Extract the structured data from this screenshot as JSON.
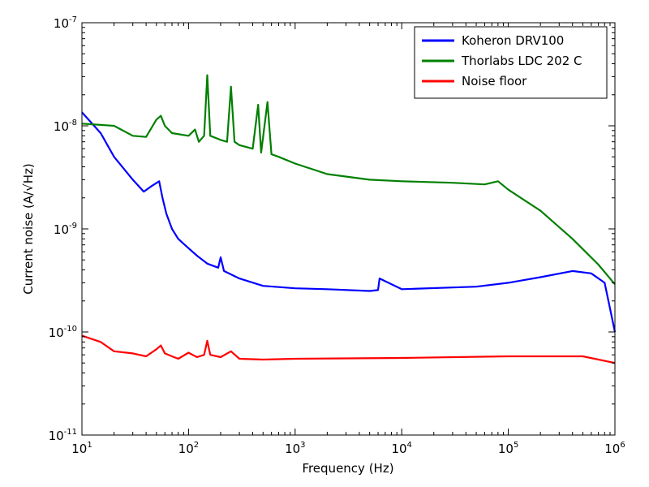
{
  "chart_data": {
    "type": "line",
    "title": "",
    "xlabel": "Frequency (Hz)",
    "ylabel": "Current noise (A/√Hz)",
    "xscale": "log",
    "yscale": "log",
    "xlim": [
      10,
      1000000
    ],
    "ylim": [
      1e-11,
      1e-07
    ],
    "grid": false,
    "legend_position": "top-right",
    "x_ticks": [
      {
        "base": "10",
        "exp": "1",
        "value": 10
      },
      {
        "base": "10",
        "exp": "2",
        "value": 100
      },
      {
        "base": "10",
        "exp": "3",
        "value": 1000
      },
      {
        "base": "10",
        "exp": "4",
        "value": 10000
      },
      {
        "base": "10",
        "exp": "5",
        "value": 100000
      },
      {
        "base": "10",
        "exp": "6",
        "value": 1000000
      }
    ],
    "y_ticks": [
      {
        "base": "10",
        "exp": "-11",
        "value": 1e-11
      },
      {
        "base": "10",
        "exp": "-10",
        "value": 1e-10
      },
      {
        "base": "10",
        "exp": "-9",
        "value": 1e-09
      },
      {
        "base": "10",
        "exp": "-8",
        "value": 1e-08
      },
      {
        "base": "10",
        "exp": "-7",
        "value": 1e-07
      }
    ],
    "series": [
      {
        "name": "Koheron DRV100",
        "color": "#0000ff",
        "x": [
          10,
          15,
          20,
          30,
          38,
          45,
          53,
          57,
          62,
          70,
          80,
          100,
          120,
          150,
          190,
          200,
          215,
          300,
          500,
          1000,
          2000,
          5000,
          6000,
          6200,
          10000,
          50000,
          100000,
          200000,
          400000,
          600000,
          800000,
          1000000
        ],
        "y": [
          1.35e-08,
          8.5e-09,
          5e-09,
          3e-09,
          2.3e-09,
          2.6e-09,
          2.9e-09,
          2e-09,
          1.4e-09,
          1e-09,
          8e-10,
          6.5e-10,
          5.5e-10,
          4.6e-10,
          4.2e-10,
          5.3e-10,
          3.9e-10,
          3.3e-10,
          2.8e-10,
          2.65e-10,
          2.6e-10,
          2.5e-10,
          2.55e-10,
          3.3e-10,
          2.6e-10,
          2.75e-10,
          3e-10,
          3.4e-10,
          3.9e-10,
          3.7e-10,
          3e-10,
          1e-10
        ]
      },
      {
        "name": "Thorlabs LDC 202 C",
        "color": "#008000",
        "x": [
          10,
          20,
          30,
          40,
          50,
          55,
          60,
          70,
          100,
          115,
          125,
          140,
          150,
          160,
          200,
          230,
          250,
          270,
          300,
          400,
          450,
          480,
          550,
          600,
          700,
          1000,
          2000,
          5000,
          10000,
          30000,
          60000,
          80000,
          100000,
          200000,
          400000,
          700000,
          1000000
        ],
        "y": [
          1.05e-08,
          1e-08,
          8e-09,
          7.8e-09,
          1.15e-08,
          1.25e-08,
          1e-08,
          8.5e-09,
          8e-09,
          9.2e-09,
          7e-09,
          8e-09,
          3.1e-08,
          8e-09,
          7.3e-09,
          7e-09,
          2.4e-08,
          7e-09,
          6.5e-09,
          6e-09,
          1.6e-08,
          5.5e-09,
          1.7e-08,
          5.3e-09,
          5e-09,
          4.3e-09,
          3.4e-09,
          3e-09,
          2.9e-09,
          2.8e-09,
          2.7e-09,
          2.9e-09,
          2.4e-09,
          1.5e-09,
          8e-10,
          4.5e-10,
          2.9e-10
        ]
      },
      {
        "name": "Noise floor",
        "color": "#ff0000",
        "x": [
          10,
          15,
          20,
          30,
          40,
          50,
          55,
          60,
          70,
          80,
          100,
          120,
          140,
          150,
          160,
          200,
          250,
          300,
          500,
          1000,
          10000,
          100000,
          500000,
          1000000
        ],
        "y": [
          9.2e-11,
          8e-11,
          6.5e-11,
          6.2e-11,
          5.8e-11,
          6.8e-11,
          7.4e-11,
          6.2e-11,
          5.8e-11,
          5.5e-11,
          6.3e-11,
          5.7e-11,
          6e-11,
          8.2e-11,
          6e-11,
          5.7e-11,
          6.5e-11,
          5.5e-11,
          5.4e-11,
          5.5e-11,
          5.6e-11,
          5.8e-11,
          5.8e-11,
          5e-11
        ]
      }
    ]
  }
}
